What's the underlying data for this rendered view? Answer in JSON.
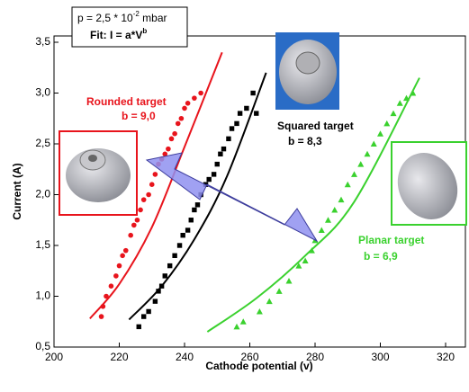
{
  "chart_data": {
    "type": "scatter",
    "x_label": "Cathode potential (v)",
    "y_label": "Current (A)",
    "xlim": [
      200,
      325
    ],
    "ylim": [
      0.5,
      3.5
    ],
    "xticks": [
      200,
      220,
      240,
      260,
      280,
      300,
      320
    ],
    "yticks": [
      {
        "value": 0.5,
        "label": "0,5"
      },
      {
        "value": 1.0,
        "label": "1,0"
      },
      {
        "value": 1.5,
        "label": "1,5"
      },
      {
        "value": 2.0,
        "label": "2,0"
      },
      {
        "value": 2.5,
        "label": "2,5"
      },
      {
        "value": 3.0,
        "label": "3,0"
      },
      {
        "value": 3.5,
        "label": "3,5"
      }
    ],
    "info_box": {
      "line1": "p = 2,5 * 10",
      "line1_sup": "-2",
      "line1_unit": " mbar",
      "line2": "Fit:  I = a*V",
      "line2_sup": "b"
    },
    "series": [
      {
        "color": "#e8141c",
        "marker": "circle",
        "label": "Rounded target",
        "fit_label": "b = 9,0",
        "x": [
          214.5,
          215,
          216,
          217.5,
          219,
          220,
          221,
          222,
          223.5,
          224.5,
          225.5,
          226.5,
          227.5,
          229,
          230,
          231,
          232,
          233,
          234,
          235,
          236,
          237,
          238,
          239,
          240,
          241,
          243,
          245
        ],
        "values": [
          0.8,
          0.9,
          1.0,
          1.1,
          1.2,
          1.3,
          1.4,
          1.45,
          1.6,
          1.7,
          1.75,
          1.85,
          1.95,
          2.0,
          2.1,
          2.2,
          2.3,
          2.35,
          2.4,
          2.45,
          2.55,
          2.6,
          2.7,
          2.75,
          2.85,
          2.9,
          2.95,
          3.0
        ],
        "fit_x": [
          211,
          220,
          230,
          240,
          251.5
        ],
        "fit_values": [
          0.78,
          1.12,
          1.68,
          2.47,
          3.4
        ]
      },
      {
        "color": "#000000",
        "marker": "square",
        "label": "Squared target",
        "fit_label": "b = 8,3",
        "x": [
          226,
          227.5,
          229,
          231,
          232,
          233,
          234,
          235.5,
          237,
          238.5,
          239.5,
          241,
          242,
          243,
          244,
          245,
          246.5,
          247.5,
          249,
          250,
          251,
          252,
          253.5,
          254.5,
          256,
          257,
          259,
          261,
          262
        ],
        "values": [
          0.7,
          0.8,
          0.85,
          0.95,
          1.05,
          1.1,
          1.2,
          1.3,
          1.4,
          1.5,
          1.6,
          1.65,
          1.75,
          1.85,
          1.9,
          2.0,
          2.1,
          2.15,
          2.2,
          2.3,
          2.4,
          2.45,
          2.55,
          2.65,
          2.7,
          2.8,
          2.85,
          3.0,
          2.8
        ],
        "fit_x": [
          223,
          233,
          243,
          253,
          265
        ],
        "fit_values": [
          0.77,
          1.1,
          1.56,
          2.18,
          3.2
        ]
      },
      {
        "color": "#3ad12e",
        "marker": "triangle",
        "label": "Planar target",
        "fit_label": "b = 6,9",
        "x": [
          256,
          258,
          263,
          266,
          269,
          272,
          275,
          277,
          279,
          280,
          282,
          284,
          286,
          288,
          290,
          292,
          294,
          296,
          298,
          300,
          302,
          304,
          306,
          308,
          310
        ],
        "values": [
          0.7,
          0.75,
          0.85,
          0.95,
          1.05,
          1.15,
          1.3,
          1.35,
          1.45,
          1.55,
          1.65,
          1.75,
          1.85,
          1.95,
          2.1,
          2.2,
          2.3,
          2.4,
          2.5,
          2.6,
          2.7,
          2.8,
          2.9,
          2.95,
          3.0
        ],
        "fit_x": [
          247,
          262,
          277,
          292,
          312
        ],
        "fit_values": [
          0.65,
          0.98,
          1.4,
          1.93,
          3.15
        ]
      }
    ]
  }
}
